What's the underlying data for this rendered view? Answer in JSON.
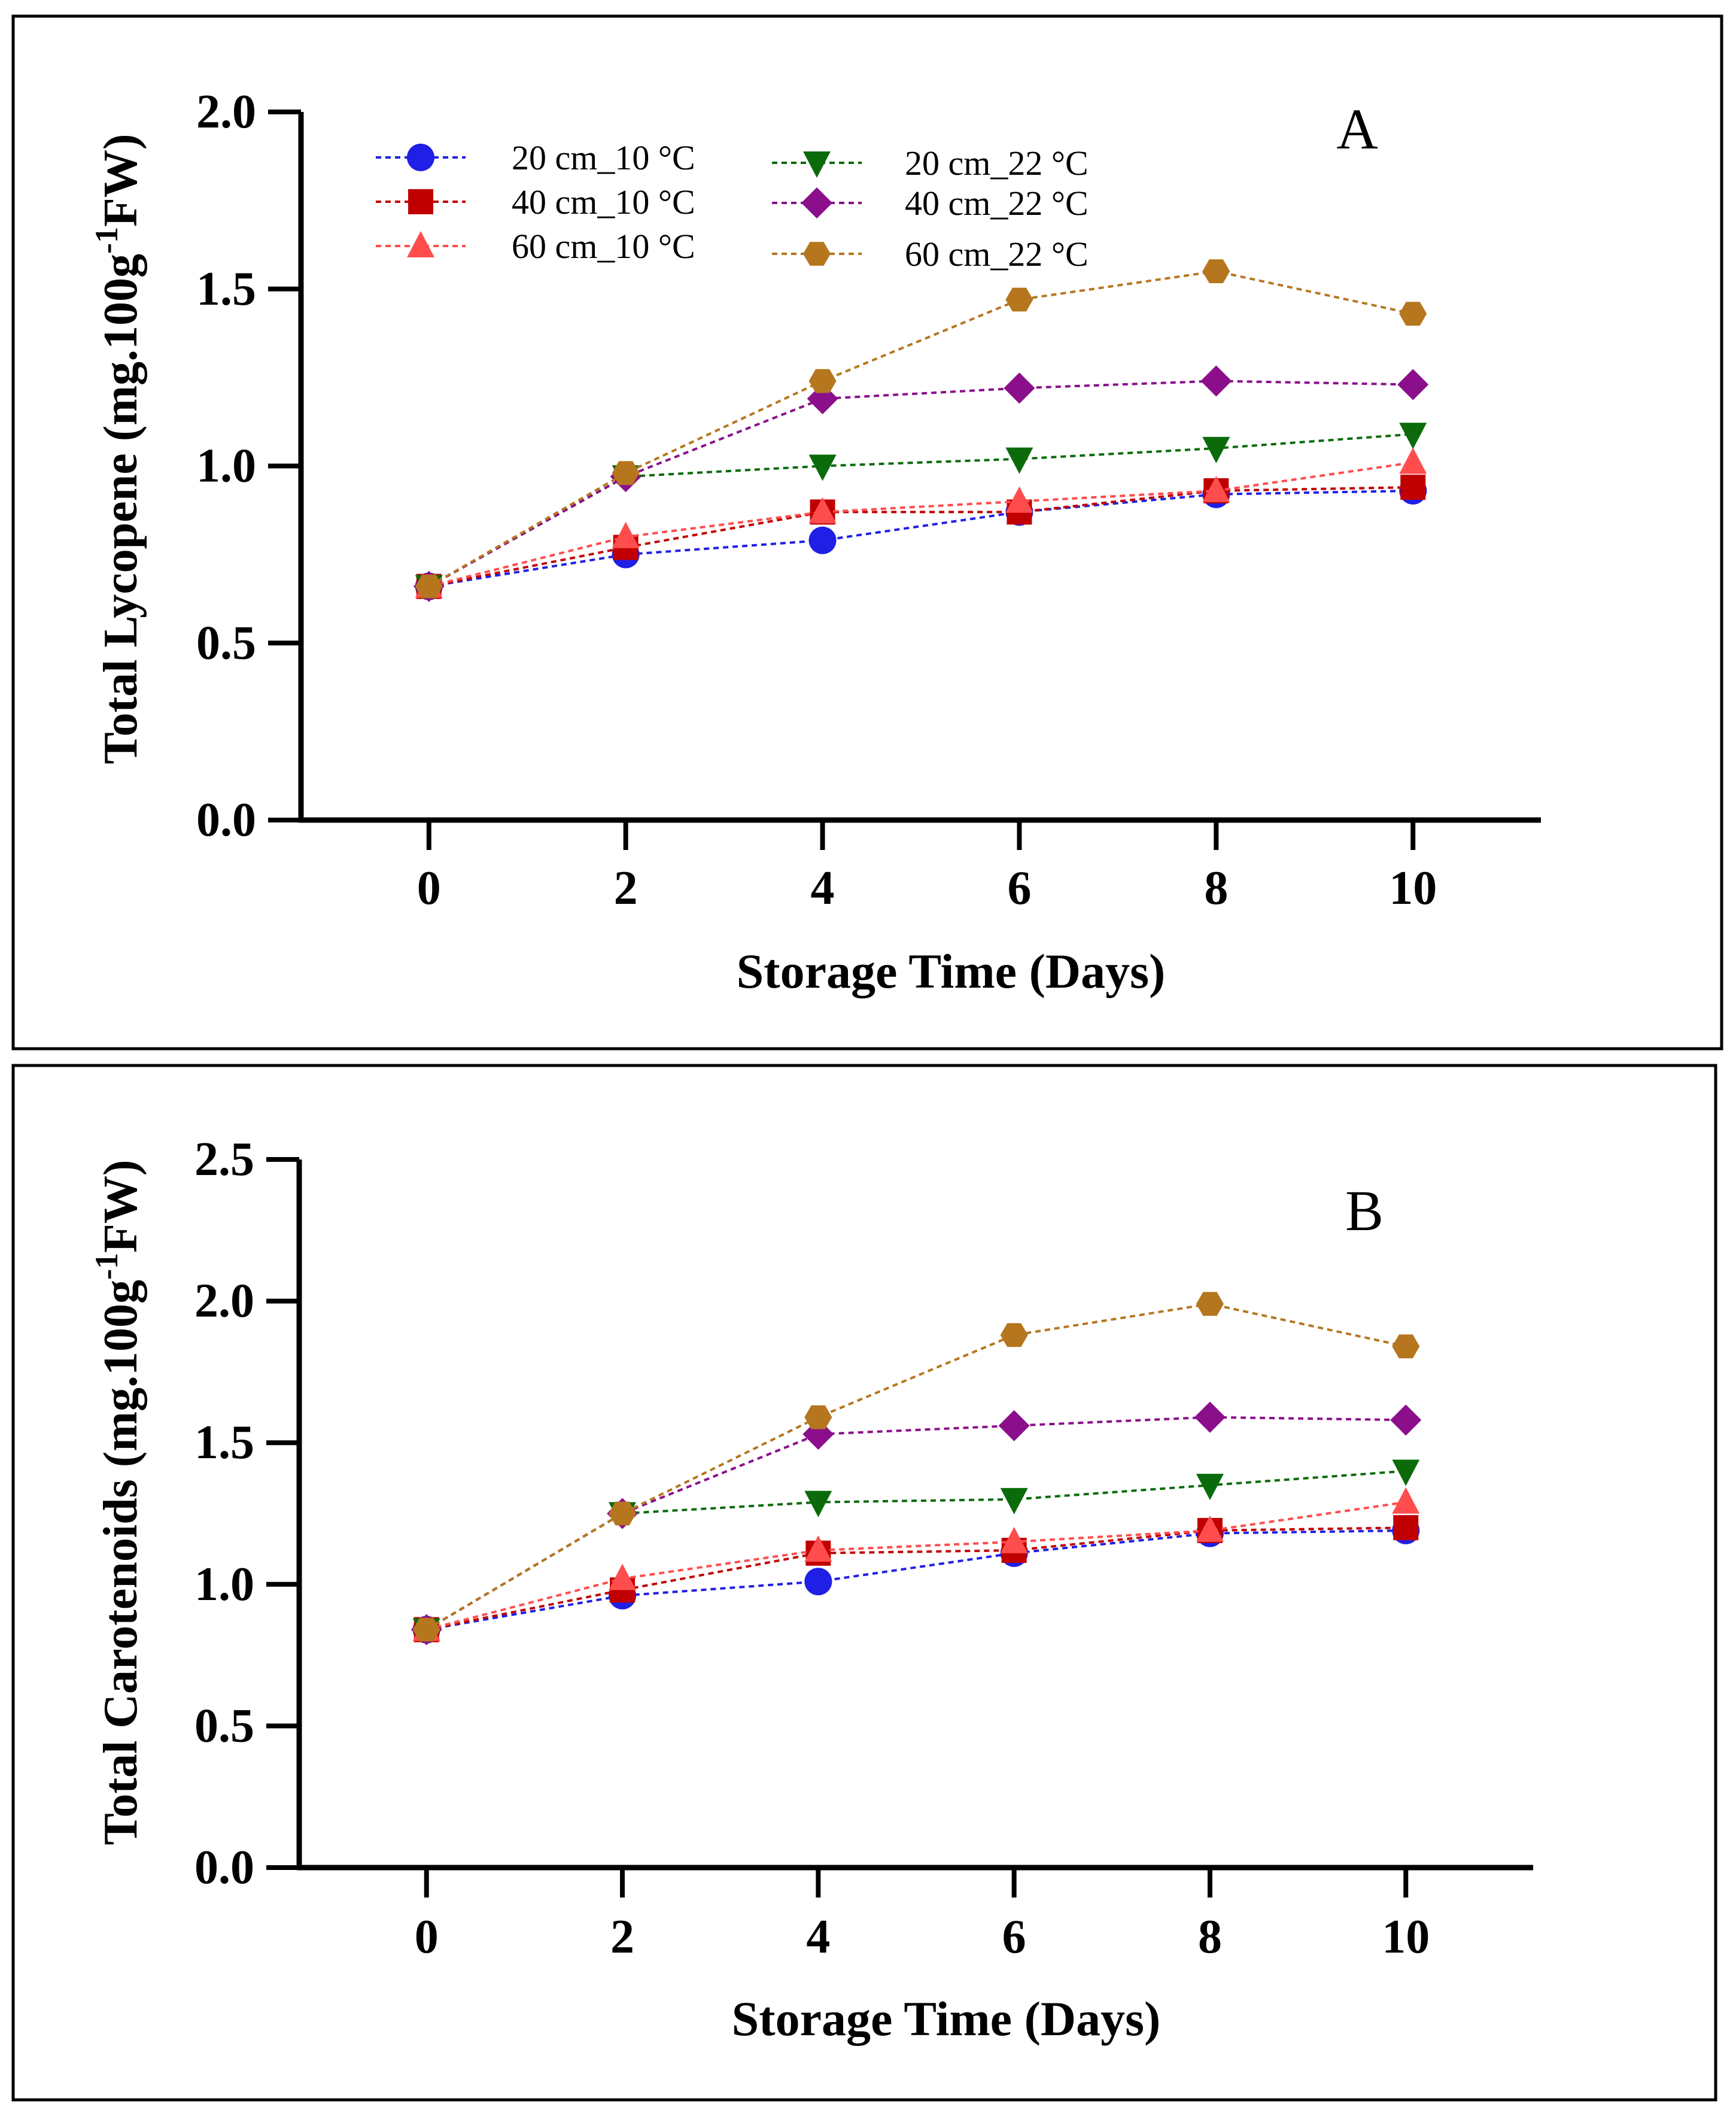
{
  "colors": {
    "20cm_10": "#1f1fe6",
    "40cm_10": "#c00000",
    "60cm_10": "#ff4d4d",
    "20cm_22": "#0b6b0b",
    "40cm_22": "#8b0f8b",
    "60cm_22": "#b5761e",
    "axis": "#000000"
  },
  "legend": {
    "entries": [
      "20 cm_10 °C",
      "40 cm_10 °C",
      "60 cm_10 °C",
      "20 cm_22 °C",
      "40 cm_22 °C",
      "60 cm_22 °C"
    ]
  },
  "chart_data": [
    {
      "type": "line",
      "panel_label": "A",
      "xlabel": "Storage Time (Days)",
      "ylabel_main": "Total Lycopene (mg.100g",
      "ylabel_sup": "-1",
      "ylabel_tail": "FW)",
      "x": [
        0,
        2,
        4,
        6,
        8,
        10
      ],
      "x_ticks": [
        "0",
        "2",
        "4",
        "6",
        "8",
        "10"
      ],
      "y_ticks": [
        "0.0",
        "0.5",
        "1.0",
        "1.5",
        "2.0"
      ],
      "xlim": [
        -1.3,
        11.3
      ],
      "ylim": [
        0,
        2.0
      ],
      "series": [
        {
          "name": "20 cm_10 °C",
          "marker": "circle",
          "color_key": "20cm_10",
          "values": [
            0.66,
            0.75,
            0.79,
            0.87,
            0.92,
            0.93
          ]
        },
        {
          "name": "40 cm_10 °C",
          "marker": "square",
          "color_key": "40cm_10",
          "values": [
            0.66,
            0.77,
            0.87,
            0.87,
            0.93,
            0.94
          ]
        },
        {
          "name": "60 cm_10 °C",
          "marker": "triangle-up",
          "color_key": "60cm_10",
          "values": [
            0.66,
            0.8,
            0.87,
            0.9,
            0.93,
            1.01
          ]
        },
        {
          "name": "20 cm_22 °C",
          "marker": "triangle-down",
          "color_key": "20cm_22",
          "values": [
            0.66,
            0.97,
            1.0,
            1.02,
            1.05,
            1.09
          ]
        },
        {
          "name": "40 cm_22 °C",
          "marker": "diamond",
          "color_key": "40cm_22",
          "values": [
            0.66,
            0.97,
            1.19,
            1.22,
            1.24,
            1.23
          ]
        },
        {
          "name": "60 cm_22 °C",
          "marker": "hexagon",
          "color_key": "60cm_22",
          "values": [
            0.66,
            0.98,
            1.24,
            1.47,
            1.55,
            1.43
          ]
        }
      ]
    },
    {
      "type": "line",
      "panel_label": "B",
      "xlabel": "Storage Time (Days)",
      "ylabel_main": "Total Carotenoids (mg.100g",
      "ylabel_sup": "-1",
      "ylabel_tail": "FW)",
      "x": [
        0,
        2,
        4,
        6,
        8,
        10
      ],
      "x_ticks": [
        "0",
        "2",
        "4",
        "6",
        "8",
        "10"
      ],
      "y_ticks": [
        "0.0",
        "0.5",
        "1.0",
        "1.5",
        "2.0",
        "2.5"
      ],
      "xlim": [
        -1.3,
        11.3
      ],
      "ylim": [
        0,
        2.5
      ],
      "series": [
        {
          "name": "20 cm_10 °C",
          "marker": "circle",
          "color_key": "20cm_10",
          "values": [
            0.84,
            0.96,
            1.01,
            1.11,
            1.18,
            1.19
          ]
        },
        {
          "name": "40 cm_10 °C",
          "marker": "square",
          "color_key": "40cm_10",
          "values": [
            0.84,
            0.98,
            1.11,
            1.12,
            1.19,
            1.2
          ]
        },
        {
          "name": "60 cm_10 °C",
          "marker": "triangle-up",
          "color_key": "60cm_10",
          "values": [
            0.84,
            1.02,
            1.12,
            1.15,
            1.19,
            1.29
          ]
        },
        {
          "name": "20 cm_22 °C",
          "marker": "triangle-down",
          "color_key": "20cm_22",
          "values": [
            0.84,
            1.25,
            1.29,
            1.3,
            1.35,
            1.4
          ]
        },
        {
          "name": "40 cm_22 °C",
          "marker": "diamond",
          "color_key": "40cm_22",
          "values": [
            0.84,
            1.25,
            1.53,
            1.56,
            1.59,
            1.58
          ]
        },
        {
          "name": "60 cm_22 °C",
          "marker": "hexagon",
          "color_key": "60cm_22",
          "values": [
            0.84,
            1.25,
            1.59,
            1.88,
            1.99,
            1.84
          ]
        }
      ]
    }
  ]
}
